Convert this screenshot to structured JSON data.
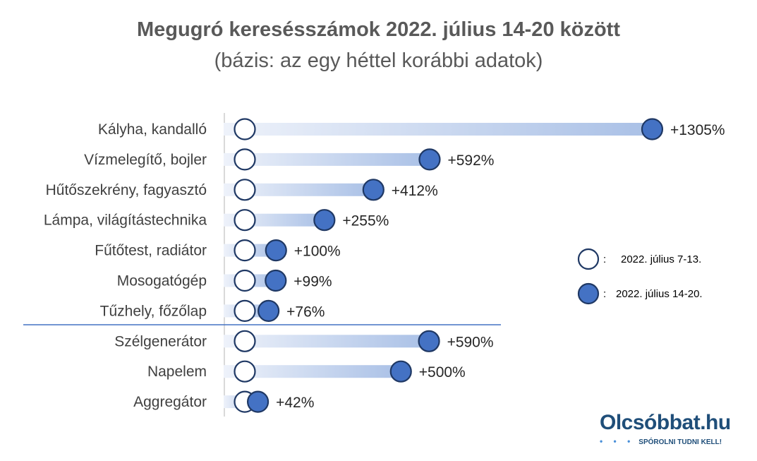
{
  "chart_data": {
    "type": "dumbbell",
    "title": "Megugró keresésszámok 2022. július 14-20 között",
    "subtitle": "(bázis: az egy héttel korábbi adatok)",
    "categories": [
      "Kályha, kandalló",
      "Vízmelegítő, bojler",
      "Hűtőszekrény, fagyasztó",
      "Lámpa, világítástechnika",
      "Fűtőtest, radiátor",
      "Mosogatógép",
      "Tűzhely, főzőlap",
      "Szélgenerátor",
      "Napelem",
      "Aggregátor"
    ],
    "values": [
      1305,
      592,
      412,
      255,
      100,
      99,
      76,
      590,
      500,
      42
    ],
    "value_labels": [
      "+1305%",
      "+592%",
      "+412%",
      "+255%",
      "+100%",
      "+99%",
      "+76%",
      "+590%",
      "+500%",
      "+42%"
    ],
    "group_separator_after_index": 6,
    "series": [
      {
        "name": "2022. július 7-13.",
        "marker": "open-circle"
      },
      {
        "name": "2022. július 14-20.",
        "marker": "filled-circle"
      }
    ],
    "legend": {
      "placement": "right",
      "items": [
        {
          "marker": "open-circle",
          "prefix": ":",
          "label": "2022. július 7-13."
        },
        {
          "marker": "filled-circle",
          "prefix": ":",
          "label": "2022. július 14-20."
        }
      ]
    },
    "colors": {
      "filled_marker": "#4472c4",
      "marker_outline": "#1f3864",
      "bar_start": "#dde6f4",
      "bar_end": "#9bb4e0",
      "separator": "#4472c4",
      "axis": "#d9d9d9"
    }
  },
  "logo": {
    "name": "Olcsóbbat.hu",
    "tagline": "SPÓROLNI TUDNI KELL!",
    "dots": "• • •"
  }
}
